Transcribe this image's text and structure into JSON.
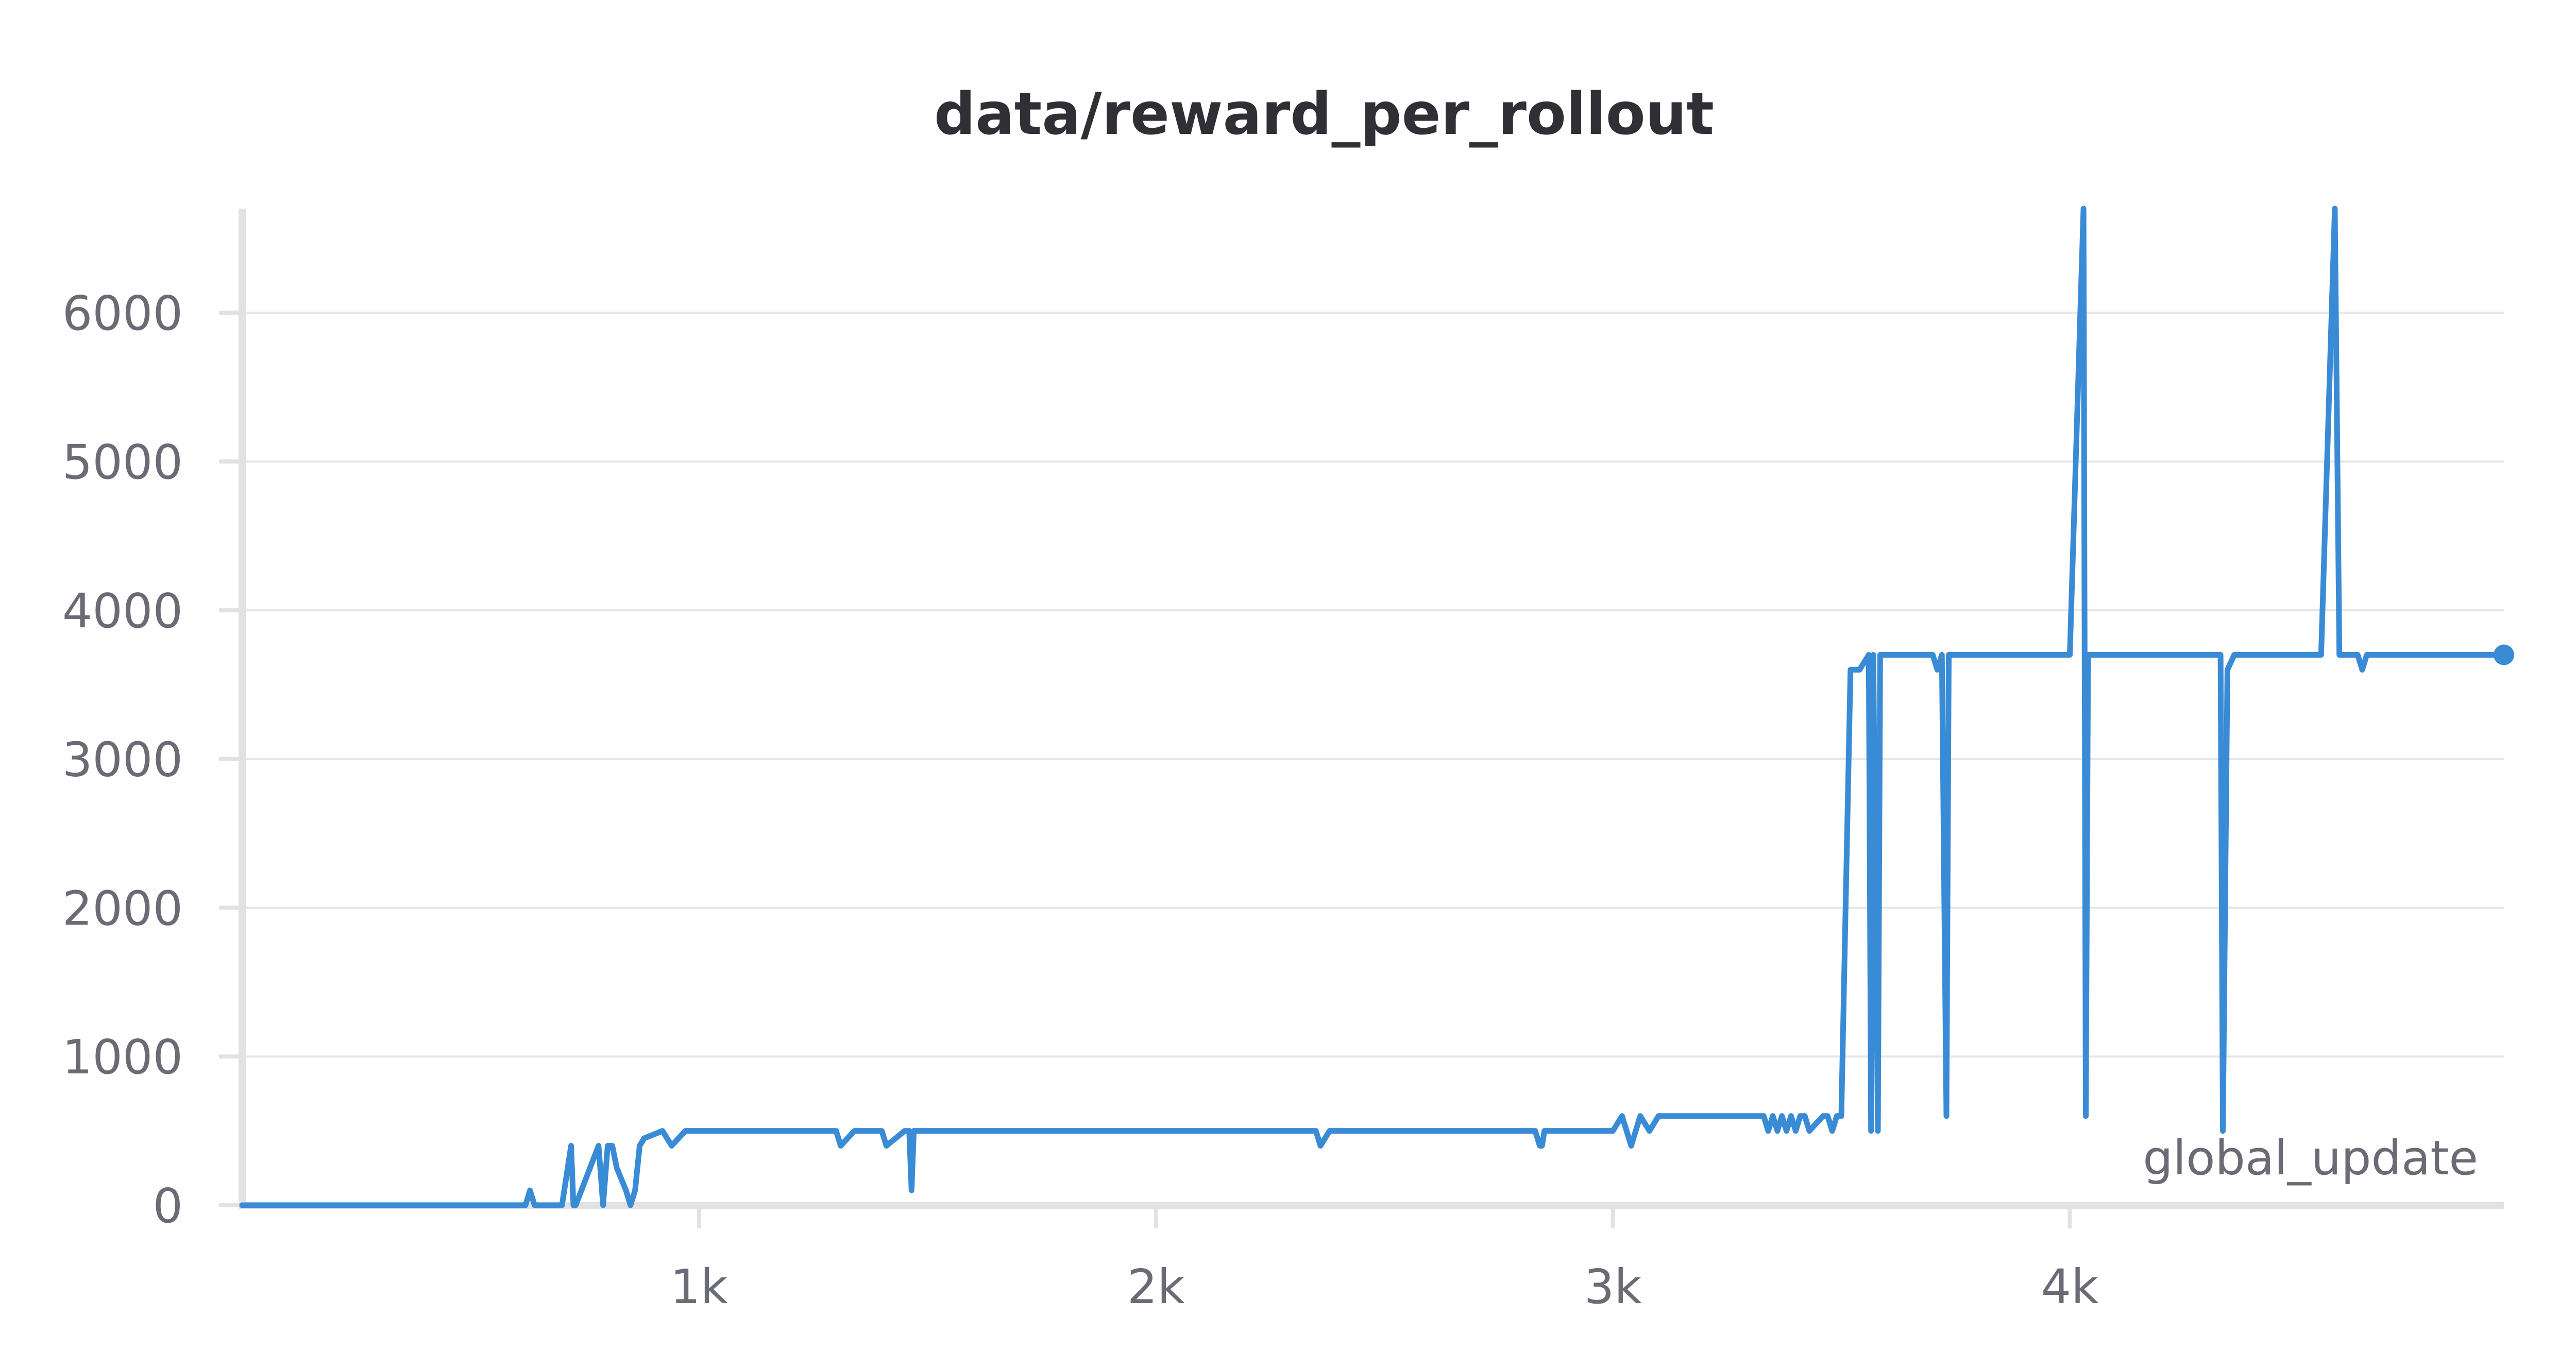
{
  "chart_data": {
    "type": "line",
    "title": "data/reward_per_rollout",
    "xlabel": "global_update",
    "ylabel": "",
    "xlim": [
      0,
      4950
    ],
    "ylim": [
      0,
      6700
    ],
    "yticks": [
      0,
      1000,
      2000,
      3000,
      4000,
      5000,
      6000
    ],
    "ytick_labels": [
      "0",
      "1000",
      "2000",
      "3000",
      "4000",
      "5000",
      "6000"
    ],
    "xticks": [
      1000,
      2000,
      3000,
      4000
    ],
    "xtick_labels": [
      "1k",
      "2k",
      "3k",
      "4k"
    ],
    "grid": true,
    "legend": "none",
    "color": "#3a8bd6",
    "series": [
      {
        "x": [
          0,
          620,
          630,
          640,
          700,
          720,
          725,
          730,
          780,
          790,
          800,
          810,
          820,
          840,
          850,
          860,
          870,
          880,
          920,
          940,
          970,
          1000,
          1300,
          1310,
          1340,
          1400,
          1410,
          1450,
          1460,
          1465,
          1470,
          2350,
          2360,
          2380,
          2830,
          2840,
          2845,
          2850,
          3000,
          3020,
          3040,
          3060,
          3080,
          3100,
          3150,
          3330,
          3340,
          3350,
          3360,
          3370,
          3380,
          3390,
          3400,
          3410,
          3420,
          3430,
          3460,
          3470,
          3480,
          3490,
          3500,
          3520,
          3540,
          3560,
          3565,
          3570,
          3580,
          3585,
          3590,
          3600,
          3700,
          3710,
          3720,
          3730,
          3735,
          3740,
          4000,
          4030,
          4035,
          4040,
          4050,
          4060,
          4330,
          4335,
          4345,
          4360,
          4380,
          4440,
          4550,
          4580,
          4590,
          4600,
          4630,
          4640,
          4650,
          4700,
          4950
        ],
        "y": [
          0,
          0,
          100,
          0,
          0,
          400,
          0,
          0,
          400,
          0,
          400,
          400,
          250,
          100,
          0,
          100,
          400,
          450,
          500,
          400,
          500,
          500,
          500,
          400,
          500,
          500,
          400,
          500,
          500,
          100,
          500,
          500,
          400,
          500,
          500,
          400,
          400,
          500,
          500,
          600,
          400,
          600,
          500,
          600,
          600,
          600,
          500,
          600,
          500,
          600,
          500,
          600,
          500,
          600,
          600,
          500,
          600,
          600,
          500,
          600,
          600,
          3600,
          3600,
          3700,
          500,
          3700,
          500,
          3700,
          3700,
          3700,
          3700,
          3600,
          3700,
          600,
          3700,
          3700,
          3700,
          6700,
          600,
          3700,
          3700,
          3700,
          3700,
          500,
          3600,
          3700,
          3700,
          3700,
          3700,
          6700,
          3700,
          3700,
          3700,
          3600,
          3700,
          3700,
          3700
        ]
      }
    ]
  }
}
